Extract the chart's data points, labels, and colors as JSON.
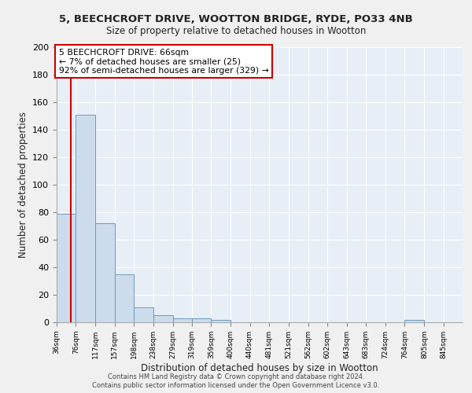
{
  "title": "5, BEECHCROFT DRIVE, WOOTTON BRIDGE, RYDE, PO33 4NB",
  "subtitle": "Size of property relative to detached houses in Wootton",
  "xlabel": "Distribution of detached houses by size in Wootton",
  "ylabel": "Number of detached properties",
  "bin_labels": [
    "36sqm",
    "76sqm",
    "117sqm",
    "157sqm",
    "198sqm",
    "238sqm",
    "279sqm",
    "319sqm",
    "359sqm",
    "400sqm",
    "440sqm",
    "481sqm",
    "521sqm",
    "562sqm",
    "602sqm",
    "643sqm",
    "683sqm",
    "724sqm",
    "764sqm",
    "805sqm",
    "845sqm"
  ],
  "bar_values": [
    79,
    151,
    72,
    35,
    11,
    5,
    3,
    3,
    2,
    0,
    0,
    0,
    0,
    0,
    0,
    0,
    0,
    0,
    2,
    0,
    0
  ],
  "bar_color": "#ccdcec",
  "bar_edge_color": "#6a9ac0",
  "background_color": "#e8eef6",
  "grid_color": "#ffffff",
  "red_line_x": 66,
  "annotation_title": "5 BEECHCROFT DRIVE: 66sqm",
  "annotation_line1": "← 7% of detached houses are smaller (25)",
  "annotation_line2": "92% of semi-detached houses are larger (329) →",
  "annotation_box_color": "#ffffff",
  "annotation_box_edge": "#cc0000",
  "red_line_color": "#cc0000",
  "ylim": [
    0,
    200
  ],
  "yticks": [
    0,
    20,
    40,
    60,
    80,
    100,
    120,
    140,
    160,
    180,
    200
  ],
  "footnote1": "Contains HM Land Registry data © Crown copyright and database right 2024.",
  "footnote2": "Contains public sector information licensed under the Open Government Licence v3.0."
}
